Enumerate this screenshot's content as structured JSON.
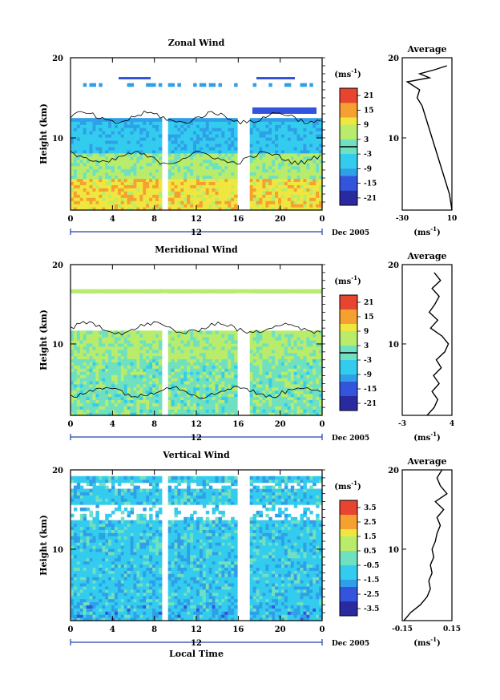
{
  "chart_data": [
    {
      "type": "heatmap",
      "title": "Zonal Wind",
      "ylabel": "Height (km)",
      "ylim": [
        1,
        20
      ],
      "y_ticks": [
        "20",
        "10"
      ],
      "x_ticks": [
        "0",
        "4",
        "8",
        "12",
        "16",
        "20",
        "0"
      ],
      "date_axis": {
        "label": "12",
        "suffix": "Dec 2005"
      },
      "colorbar": {
        "unit": "(ms",
        "unit_sup": "-1",
        "unit_close": ")",
        "ticks": [
          "21",
          "15",
          "9",
          "3",
          "-3",
          "-9",
          "-15",
          "-21"
        ],
        "zero_line": true
      },
      "profile": {
        "title": "Average",
        "xlabel": "(ms",
        "xlabel_sup": "-1",
        "xlabel_close": ")",
        "x_ticks": [
          "-30",
          "10"
        ],
        "xlim": [
          -30,
          10
        ],
        "y_ticks": [
          "20",
          "10"
        ],
        "height_km": [
          1,
          2,
          3,
          4,
          5,
          6,
          7,
          8,
          9,
          10,
          11,
          12,
          13,
          14,
          15,
          16,
          17,
          17.5,
          18,
          18.5,
          19
        ],
        "values": [
          10,
          9,
          8,
          6,
          4,
          2,
          0,
          -2,
          -4,
          -6,
          -8,
          -10,
          -12,
          -14,
          -18,
          -16,
          -26,
          -8,
          -16,
          -4,
          6
        ]
      }
    },
    {
      "type": "heatmap",
      "title": "Meridional Wind",
      "ylabel": "Height (km)",
      "ylim": [
        1,
        20
      ],
      "y_ticks": [
        "20",
        "10"
      ],
      "x_ticks": [
        "0",
        "4",
        "8",
        "12",
        "16",
        "20",
        "0"
      ],
      "date_axis": {
        "label": "12",
        "suffix": "Dec 2005"
      },
      "colorbar": {
        "unit": "(ms",
        "unit_sup": "-1",
        "unit_close": ")",
        "ticks": [
          "21",
          "15",
          "9",
          "3",
          "-3",
          "-9",
          "-15",
          "-21"
        ],
        "zero_line": true
      },
      "profile": {
        "title": "Average",
        "xlabel": "(ms",
        "xlabel_sup": "-1",
        "xlabel_close": ")",
        "x_ticks": [
          "-3",
          "4"
        ],
        "xlim": [
          -3,
          4
        ],
        "y_ticks": [
          "20",
          "10"
        ],
        "height_km": [
          1,
          2,
          3,
          4,
          5,
          6,
          7,
          8,
          9,
          10,
          11,
          12,
          13,
          14,
          15,
          16,
          17,
          18,
          19
        ],
        "values": [
          0.5,
          1.5,
          2.0,
          1.2,
          2.2,
          1.4,
          2.5,
          1.8,
          3.0,
          3.5,
          2.6,
          1.0,
          2.0,
          0.8,
          1.6,
          2.2,
          1.2,
          2.4,
          1.5
        ]
      }
    },
    {
      "type": "heatmap",
      "title": "Vertical Wind",
      "ylabel": "Height (km)",
      "xlabel": "Local Time",
      "ylim": [
        1,
        20
      ],
      "y_ticks": [
        "20",
        "10"
      ],
      "x_ticks": [
        "0",
        "4",
        "8",
        "12",
        "16",
        "20",
        "0"
      ],
      "date_axis": {
        "label": "12",
        "suffix": "Dec 2005"
      },
      "colorbar": {
        "unit": "(ms",
        "unit_sup": "-1",
        "unit_close": ")",
        "ticks": [
          "3.5",
          "2.5",
          "1.5",
          "0.5",
          "-0.5",
          "-1.5",
          "-2.5",
          "-3.5"
        ],
        "zero_line": false
      },
      "profile": {
        "title": "Average",
        "xlabel": "(ms",
        "xlabel_sup": "-1",
        "xlabel_close": ")",
        "x_ticks": [
          "-0.15",
          "0.15"
        ],
        "xlim": [
          -0.15,
          0.15
        ],
        "y_ticks": [
          "20",
          "10"
        ],
        "height_km": [
          1,
          2,
          3,
          4,
          5,
          6,
          7,
          8,
          9,
          10,
          11,
          12,
          13,
          14,
          15,
          16,
          17,
          18,
          19,
          20
        ],
        "values": [
          -0.14,
          -0.1,
          -0.04,
          0.0,
          0.02,
          0.01,
          0.03,
          0.02,
          0.04,
          0.03,
          0.05,
          0.06,
          0.08,
          0.06,
          0.1,
          0.05,
          0.12,
          0.08,
          0.06,
          0.09
        ]
      }
    }
  ]
}
